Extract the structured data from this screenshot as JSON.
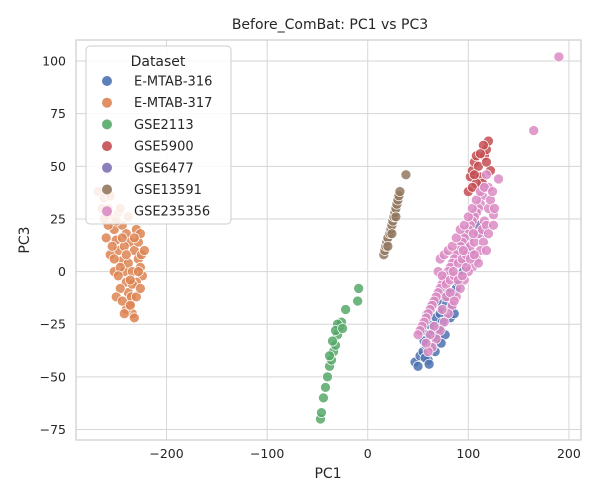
{
  "chart_data": {
    "type": "scatter",
    "title": "Before_ComBat: PC1 vs PC3",
    "xlabel": "PC1",
    "ylabel": "PC3",
    "xlim": [
      -290,
      212
    ],
    "ylim": [
      -80,
      110
    ],
    "xticks": [
      -200,
      -100,
      0,
      100,
      200
    ],
    "yticks": [
      -75,
      -50,
      -25,
      0,
      25,
      50,
      75,
      100
    ],
    "grid": true,
    "legend": {
      "title": "Dataset",
      "placement": "top-left"
    },
    "series": [
      {
        "name": "E-MTAB-316",
        "color": "#4c72b0",
        "points": [
          [
            47,
            -43
          ],
          [
            50,
            -45
          ],
          [
            52,
            -40
          ],
          [
            55,
            -38
          ],
          [
            58,
            -35
          ],
          [
            60,
            -42
          ],
          [
            62,
            -30
          ],
          [
            65,
            -28
          ],
          [
            60,
            -25
          ],
          [
            68,
            -22
          ],
          [
            70,
            -32
          ],
          [
            72,
            -20
          ],
          [
            75,
            -18
          ],
          [
            78,
            -15
          ],
          [
            80,
            -12
          ],
          [
            82,
            -22
          ],
          [
            85,
            -10
          ],
          [
            88,
            -8
          ],
          [
            56,
            -33
          ],
          [
            63,
            -36
          ],
          [
            66,
            -26
          ],
          [
            74,
            -24
          ],
          [
            54,
            -28
          ],
          [
            59,
            -20
          ],
          [
            69,
            -14
          ],
          [
            77,
            -30
          ],
          [
            83,
            -17
          ],
          [
            90,
            -5
          ],
          [
            92,
            -2
          ],
          [
            95,
            0
          ],
          [
            64,
            -16
          ],
          [
            71,
            -27
          ],
          [
            79,
            -10
          ],
          [
            86,
            -20
          ],
          [
            57,
            -41
          ],
          [
            61,
            -44
          ],
          [
            67,
            -38
          ],
          [
            73,
            -34
          ]
        ]
      },
      {
        "name": "E-MTAB-317",
        "color": "#dd8452",
        "points": [
          [
            -268,
            38
          ],
          [
            -262,
            35
          ],
          [
            -258,
            30
          ],
          [
            -255,
            25
          ],
          [
            -252,
            20
          ],
          [
            -250,
            15
          ],
          [
            -248,
            10
          ],
          [
            -245,
            5
          ],
          [
            -242,
            0
          ],
          [
            -240,
            -5
          ],
          [
            -238,
            -10
          ],
          [
            -236,
            -15
          ],
          [
            -234,
            -20
          ],
          [
            -232,
            -22
          ],
          [
            -248,
            28
          ],
          [
            -244,
            22
          ],
          [
            -240,
            18
          ],
          [
            -236,
            14
          ],
          [
            -232,
            10
          ],
          [
            -228,
            6
          ],
          [
            -226,
            2
          ],
          [
            -224,
            -2
          ],
          [
            -225,
            8
          ],
          [
            -230,
            -5
          ],
          [
            -235,
            -12
          ],
          [
            -240,
            -18
          ],
          [
            -246,
            -8
          ],
          [
            -252,
            0
          ],
          [
            -256,
            8
          ],
          [
            -260,
            16
          ],
          [
            -250,
            -12
          ],
          [
            -242,
            12
          ],
          [
            -238,
            4
          ],
          [
            -234,
            -6
          ],
          [
            -230,
            20
          ],
          [
            -228,
            14
          ],
          [
            -226,
            18
          ],
          [
            -222,
            10
          ],
          [
            -246,
            2
          ],
          [
            -254,
            12
          ],
          [
            -244,
            -14
          ],
          [
            -238,
            26
          ],
          [
            -234,
            0
          ],
          [
            -230,
            -12
          ],
          [
            -248,
            -2
          ],
          [
            -242,
            -20
          ],
          [
            -236,
            -4
          ],
          [
            -232,
            16
          ],
          [
            -250,
            24
          ],
          [
            -258,
            22
          ],
          [
            -264,
            30
          ],
          [
            -240,
            8
          ],
          [
            -226,
            -8
          ],
          [
            -244,
            16
          ],
          [
            -236,
            -16
          ],
          [
            -252,
            6
          ],
          [
            -228,
            0
          ],
          [
            -246,
            30
          ],
          [
            -256,
            36
          ],
          [
            -262,
            25
          ]
        ]
      },
      {
        "name": "GSE2113",
        "color": "#55a868",
        "points": [
          [
            -47,
            -70
          ],
          [
            -46,
            -67
          ],
          [
            -44,
            -60
          ],
          [
            -42,
            -55
          ],
          [
            -40,
            -50
          ],
          [
            -38,
            -45
          ],
          [
            -36,
            -42
          ],
          [
            -34,
            -38
          ],
          [
            -32,
            -35
          ],
          [
            -30,
            -30
          ],
          [
            -28,
            -26
          ],
          [
            -26,
            -24
          ],
          [
            -30,
            -25
          ],
          [
            -32,
            -28
          ],
          [
            -35,
            -33
          ],
          [
            -38,
            -40
          ],
          [
            -25,
            -27
          ],
          [
            -22,
            -18
          ],
          [
            -10,
            -14
          ],
          [
            -9,
            -8
          ]
        ]
      },
      {
        "name": "GSE5900",
        "color": "#c44e52",
        "points": [
          [
            100,
            38
          ],
          [
            102,
            45
          ],
          [
            104,
            48
          ],
          [
            106,
            52
          ],
          [
            108,
            55
          ],
          [
            110,
            50
          ],
          [
            112,
            45
          ],
          [
            114,
            42
          ],
          [
            116,
            55
          ],
          [
            118,
            58
          ],
          [
            120,
            62
          ],
          [
            122,
            48
          ],
          [
            115,
            60
          ],
          [
            108,
            42
          ],
          [
            104,
            40
          ],
          [
            118,
            52
          ],
          [
            112,
            56
          ],
          [
            106,
            46
          ]
        ]
      },
      {
        "name": "GSE6477",
        "color": "#8172b3",
        "points": [
          [
            95,
            5
          ],
          [
            98,
            10
          ],
          [
            100,
            15
          ],
          [
            102,
            20
          ],
          [
            105,
            25
          ],
          [
            108,
            28
          ],
          [
            110,
            22
          ],
          [
            112,
            18
          ],
          [
            96,
            12
          ],
          [
            104,
            8
          ]
        ]
      },
      {
        "name": "GSE13591",
        "color": "#937860",
        "points": [
          [
            16,
            8
          ],
          [
            17,
            10
          ],
          [
            18,
            12
          ],
          [
            19,
            14
          ],
          [
            20,
            16
          ],
          [
            22,
            18
          ],
          [
            23,
            20
          ],
          [
            24,
            22
          ],
          [
            25,
            24
          ],
          [
            26,
            26
          ],
          [
            27,
            28
          ],
          [
            28,
            30
          ],
          [
            29,
            32
          ],
          [
            30,
            34
          ],
          [
            31,
            36
          ],
          [
            32,
            38
          ],
          [
            38,
            46
          ],
          [
            20,
            12
          ],
          [
            24,
            18
          ],
          [
            28,
            26
          ]
        ]
      },
      {
        "name": "GSE235356",
        "color": "#da8bc3",
        "points": [
          [
            190,
            102
          ],
          [
            165,
            67
          ],
          [
            130,
            44
          ],
          [
            125,
            27
          ],
          [
            120,
            40
          ],
          [
            118,
            46
          ],
          [
            116,
            24
          ],
          [
            114,
            36
          ],
          [
            112,
            32
          ],
          [
            110,
            30
          ],
          [
            108,
            28
          ],
          [
            106,
            26
          ],
          [
            104,
            24
          ],
          [
            102,
            22
          ],
          [
            100,
            20
          ],
          [
            98,
            18
          ],
          [
            96,
            16
          ],
          [
            94,
            14
          ],
          [
            92,
            12
          ],
          [
            90,
            10
          ],
          [
            88,
            8
          ],
          [
            86,
            6
          ],
          [
            84,
            4
          ],
          [
            82,
            2
          ],
          [
            80,
            0
          ],
          [
            78,
            -2
          ],
          [
            76,
            -4
          ],
          [
            74,
            -6
          ],
          [
            72,
            -8
          ],
          [
            70,
            -10
          ],
          [
            68,
            -12
          ],
          [
            66,
            -14
          ],
          [
            64,
            -16
          ],
          [
            62,
            -18
          ],
          [
            60,
            -20
          ],
          [
            58,
            -22
          ],
          [
            56,
            -24
          ],
          [
            54,
            -26
          ],
          [
            52,
            -28
          ],
          [
            50,
            -30
          ],
          [
            70,
            0
          ],
          [
            72,
            6
          ],
          [
            74,
            -2
          ],
          [
            76,
            8
          ],
          [
            78,
            -6
          ],
          [
            80,
            10
          ],
          [
            82,
            -4
          ],
          [
            84,
            12
          ],
          [
            86,
            -2
          ],
          [
            88,
            16
          ],
          [
            90,
            4
          ],
          [
            92,
            20
          ],
          [
            94,
            6
          ],
          [
            96,
            22
          ],
          [
            98,
            8
          ],
          [
            100,
            26
          ],
          [
            102,
            12
          ],
          [
            104,
            30
          ],
          [
            106,
            14
          ],
          [
            108,
            34
          ],
          [
            110,
            18
          ],
          [
            112,
            38
          ],
          [
            114,
            20
          ],
          [
            116,
            40
          ],
          [
            118,
            22
          ],
          [
            120,
            30
          ],
          [
            122,
            34
          ],
          [
            124,
            38
          ],
          [
            126,
            30
          ],
          [
            115,
            14
          ],
          [
            112,
            10
          ],
          [
            108,
            6
          ],
          [
            104,
            2
          ],
          [
            100,
            0
          ],
          [
            96,
            -4
          ],
          [
            92,
            -8
          ],
          [
            88,
            -12
          ],
          [
            84,
            -16
          ],
          [
            80,
            -20
          ],
          [
            76,
            -24
          ],
          [
            72,
            -28
          ],
          [
            68,
            -32
          ],
          [
            64,
            -36
          ],
          [
            60,
            -38
          ],
          [
            85,
            0
          ],
          [
            90,
            -4
          ],
          [
            95,
            10
          ],
          [
            105,
            18
          ],
          [
            110,
            4
          ],
          [
            120,
            18
          ],
          [
            125,
            22
          ],
          [
            118,
            10
          ],
          [
            66,
            -26
          ],
          [
            62,
            -30
          ],
          [
            58,
            -34
          ],
          [
            74,
            -18
          ],
          [
            78,
            -12
          ],
          [
            82,
            -10
          ],
          [
            86,
            -14
          ],
          [
            94,
            -2
          ],
          [
            98,
            2
          ],
          [
            102,
            6
          ],
          [
            106,
            8
          ]
        ]
      }
    ]
  }
}
